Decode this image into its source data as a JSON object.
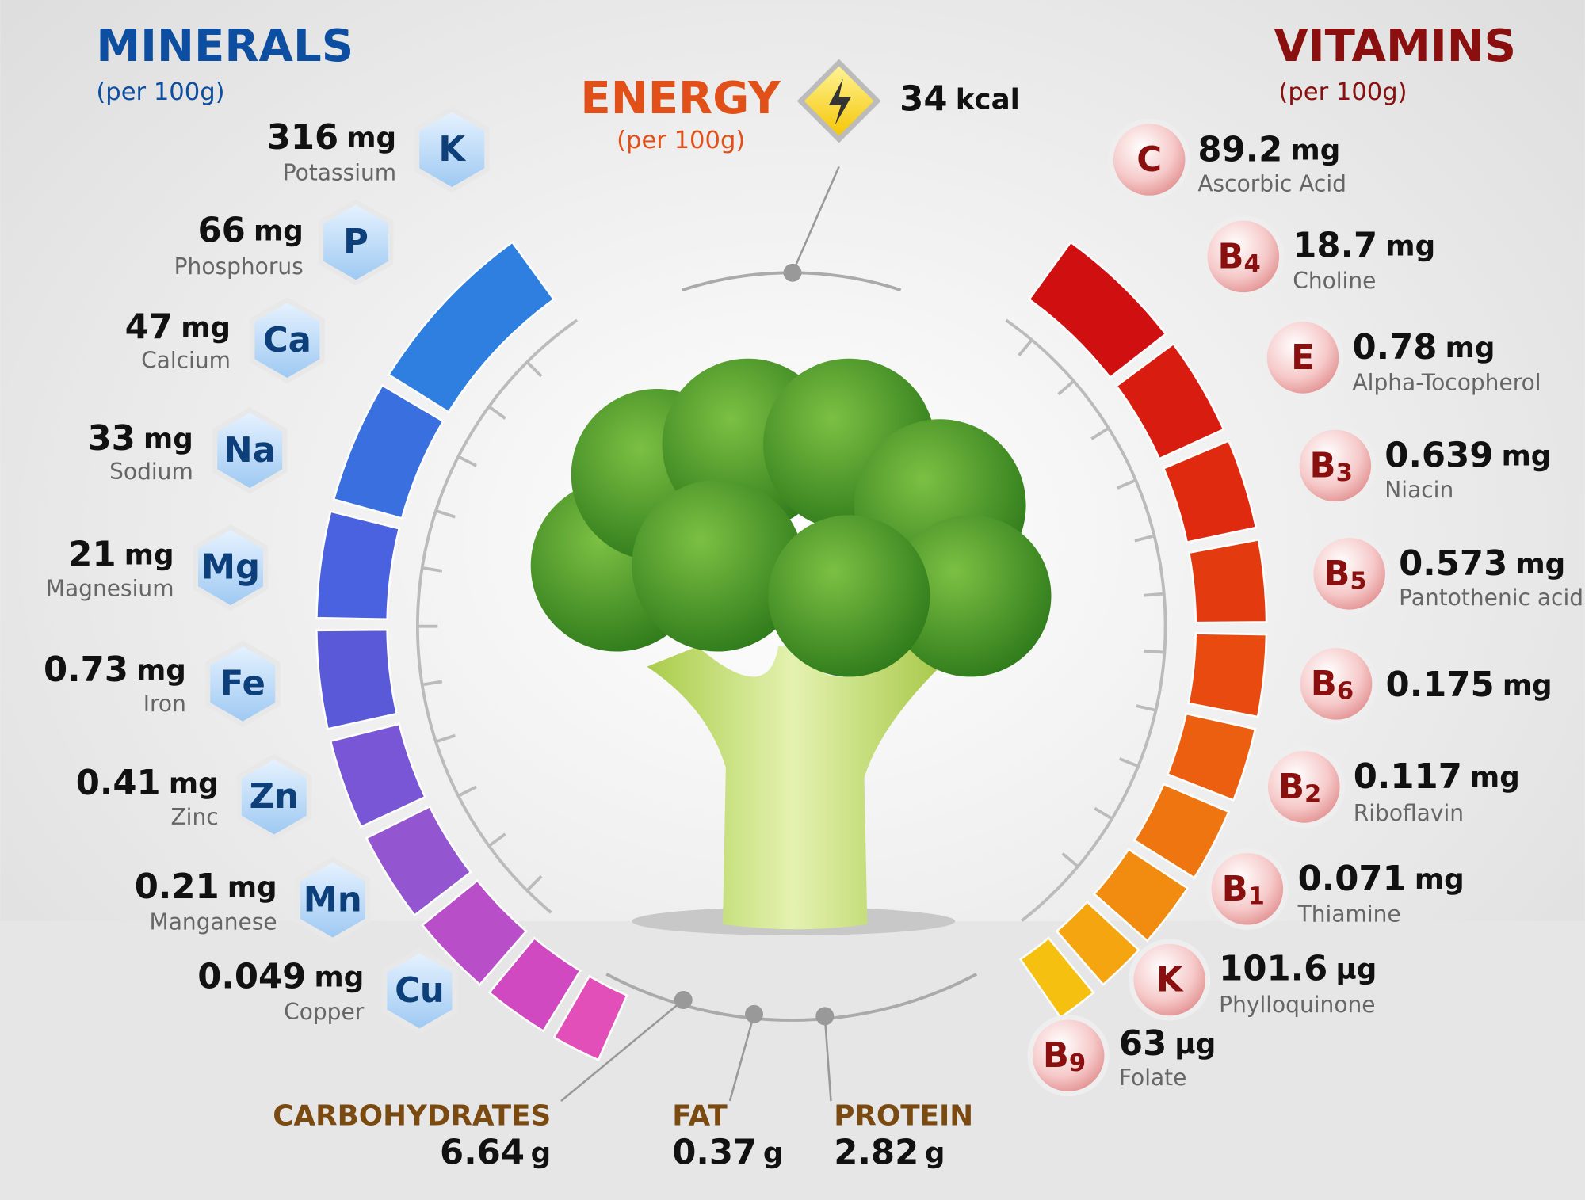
{
  "minerals": {
    "title": "MINERALS",
    "subtitle": "(per 100g)",
    "items": [
      {
        "symbol": "K",
        "value": 316,
        "unit": "mg",
        "name": "Potassium"
      },
      {
        "symbol": "P",
        "value": 66,
        "unit": "mg",
        "name": "Phosphorus"
      },
      {
        "symbol": "Ca",
        "value": 47,
        "unit": "mg",
        "name": "Calcium"
      },
      {
        "symbol": "Na",
        "value": 33,
        "unit": "mg",
        "name": "Sodium"
      },
      {
        "symbol": "Mg",
        "value": 21,
        "unit": "mg",
        "name": "Magnesium"
      },
      {
        "symbol": "Fe",
        "value": 0.73,
        "unit": "mg",
        "name": "Iron"
      },
      {
        "symbol": "Zn",
        "value": 0.41,
        "unit": "mg",
        "name": "Zinc"
      },
      {
        "symbol": "Mn",
        "value": 0.21,
        "unit": "mg",
        "name": "Manganese"
      },
      {
        "symbol": "Cu",
        "value": 0.049,
        "unit": "mg",
        "name": "Copper"
      }
    ]
  },
  "vitamins": {
    "title": "VITAMINS",
    "subtitle": "(per 100g)",
    "items": [
      {
        "symbol": "C",
        "value": 89.2,
        "unit": "mg",
        "name": "Ascorbic Acid"
      },
      {
        "symbol": "B",
        "subscript": "4",
        "value": 18.7,
        "unit": "mg",
        "name": "Choline"
      },
      {
        "symbol": "E",
        "value": 0.78,
        "unit": "mg",
        "name": "Alpha-Tocopherol"
      },
      {
        "symbol": "B",
        "subscript": "3",
        "value": 0.639,
        "unit": "mg",
        "name": "Niacin"
      },
      {
        "symbol": "B",
        "subscript": "5",
        "value": 0.573,
        "unit": "mg",
        "name": "Pantothenic acid"
      },
      {
        "symbol": "B",
        "subscript": "6",
        "value": 0.175,
        "unit": "mg"
      },
      {
        "symbol": "B",
        "subscript": "2",
        "value": 0.117,
        "unit": "mg",
        "name": "Riboflavin"
      },
      {
        "symbol": "B",
        "subscript": "1",
        "value": 0.071,
        "unit": "mg",
        "name": "Thiamine"
      },
      {
        "symbol": "K",
        "value": 101.6,
        "unit": "µg",
        "name": "Phylloquinone"
      },
      {
        "symbol": "B",
        "subscript": "9",
        "value": 63,
        "unit": "µg",
        "name": "Folate"
      }
    ]
  },
  "energy": {
    "title": "ENERGY",
    "subtitle": "(per 100g)",
    "value": 34,
    "unit": "kcal"
  },
  "macros": [
    {
      "name": "CARBOHYDRATES",
      "value": 6.64,
      "unit": "g"
    },
    {
      "name": "FAT",
      "value": 0.37,
      "unit": "g"
    },
    {
      "name": "PROTEIN",
      "value": 2.82,
      "unit": "g"
    }
  ]
}
